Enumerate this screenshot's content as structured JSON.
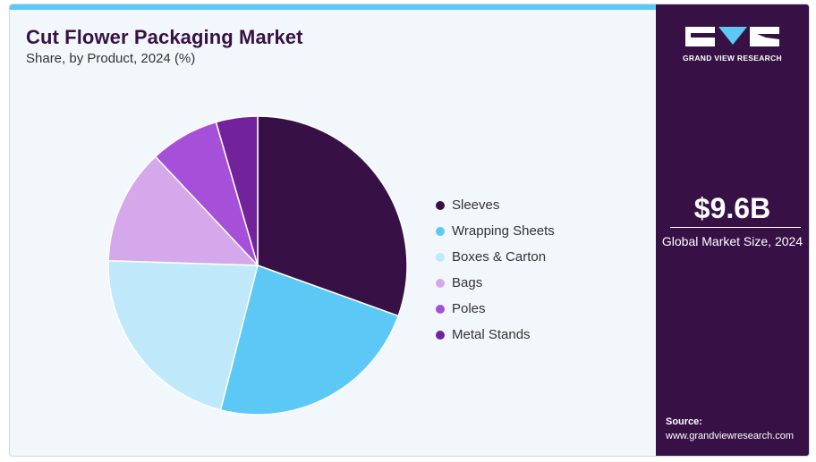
{
  "header": {
    "title": "Cut Flower Packaging Market",
    "subtitle": "Share, by Product, 2024 (%)"
  },
  "chart_data": {
    "type": "pie",
    "title": "Cut Flower Packaging Market",
    "subtitle": "Share, by Product, 2024 (%)",
    "legend_position": "right",
    "slices": [
      {
        "label": "Sleeves",
        "value": 30.5,
        "color": "#371146"
      },
      {
        "label": "Wrapping Sheets",
        "value": 23.5,
        "color": "#5bc8f5"
      },
      {
        "label": "Boxes & Carton",
        "value": 21.5,
        "color": "#bfe9fa"
      },
      {
        "label": "Bags",
        "value": 12.5,
        "color": "#d4a8ea"
      },
      {
        "label": "Poles",
        "value": 7.5,
        "color": "#a64fd8"
      },
      {
        "label": "Metal Stands",
        "value": 4.5,
        "color": "#72229a"
      }
    ]
  },
  "sidebar": {
    "brand": "GRAND VIEW RESEARCH",
    "market_size_value": "$9.6B",
    "market_size_label": "Global Market Size, 2024",
    "source_label": "Source:",
    "source_url": "www.grandviewresearch.com"
  },
  "colors": {
    "brand_purple": "#371146",
    "accent_blue": "#5bc8f5",
    "panel_bg": "#f2f7fb"
  }
}
